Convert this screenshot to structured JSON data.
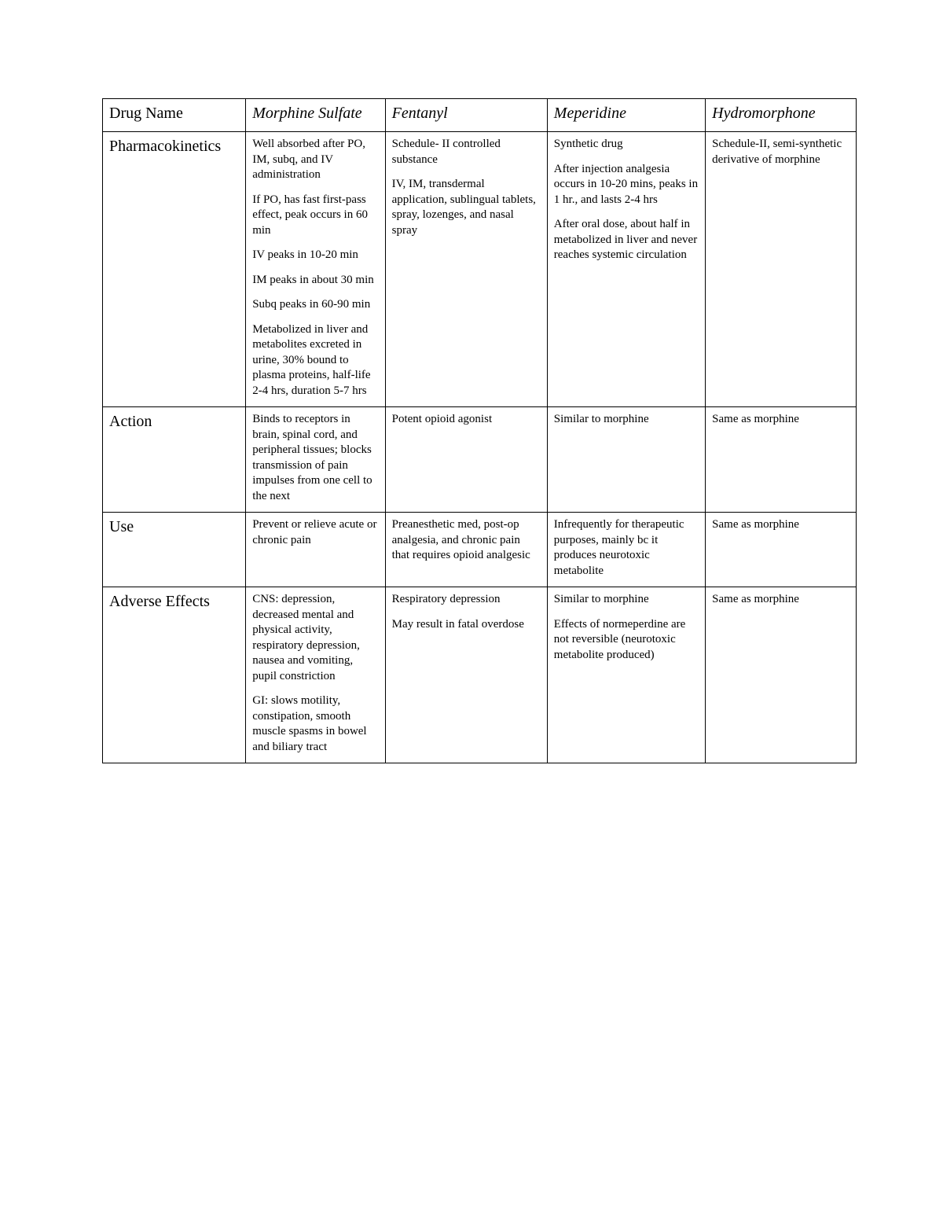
{
  "table": {
    "background_color": "#ffffff",
    "border_color": "#000000",
    "header_fontsize": 20,
    "body_fontsize": 15,
    "font_family": "Times New Roman",
    "columns": [
      {
        "label": "Drug Name",
        "italic": false
      },
      {
        "label": "Morphine Sulfate",
        "italic": true
      },
      {
        "label": "Fentanyl",
        "italic": true
      },
      {
        "label": "Meperidine",
        "italic": true
      },
      {
        "label": "Hydromorphone",
        "italic": true
      }
    ],
    "rows": [
      {
        "label": "Pharmacokinetics",
        "cells": [
          [
            "Well absorbed after PO, IM, subq, and IV administration",
            "If PO, has fast first-pass effect, peak occurs in 60 min",
            "IV peaks in 10-20 min",
            "IM peaks in about 30 min",
            "Subq peaks in 60-90 min",
            "Metabolized in liver and metabolites excreted in urine, 30% bound to plasma proteins, half-life 2-4 hrs, duration 5-7 hrs"
          ],
          [
            "Schedule- II controlled substance",
            "IV, IM, transdermal application, sublingual tablets, spray, lozenges, and nasal spray"
          ],
          [
            "Synthetic drug",
            "After injection analgesia occurs in 10-20 mins, peaks in 1 hr., and lasts 2-4 hrs",
            "After oral dose, about half in metabolized in liver and never reaches systemic circulation"
          ],
          [
            "Schedule-II, semi-synthetic derivative of morphine"
          ]
        ]
      },
      {
        "label": "Action",
        "cells": [
          [
            "Binds to receptors in brain, spinal cord, and peripheral tissues; blocks transmission of pain impulses from one cell to the next"
          ],
          [
            "Potent opioid agonist"
          ],
          [
            "Similar to morphine"
          ],
          [
            "Same as morphine"
          ]
        ]
      },
      {
        "label": "Use",
        "cells": [
          [
            "Prevent or relieve acute or chronic pain"
          ],
          [
            "Preanesthetic med, post-op analgesia, and chronic pain that requires opioid analgesic"
          ],
          [
            "Infrequently for therapeutic purposes, mainly bc it produces neurotoxic metabolite"
          ],
          [
            "Same as morphine"
          ]
        ]
      },
      {
        "label": "Adverse Effects",
        "cells": [
          [
            "CNS: depression, decreased mental and physical activity, respiratory depression, nausea and vomiting, pupil constriction",
            "GI: slows motility, constipation, smooth muscle spasms in bowel and biliary tract"
          ],
          [
            "Respiratory depression",
            "May result in fatal overdose"
          ],
          [
            "Similar to morphine",
            "Effects of normeperdine are not reversible (neurotoxic metabolite produced)"
          ],
          [
            "Same as morphine"
          ]
        ]
      }
    ]
  }
}
